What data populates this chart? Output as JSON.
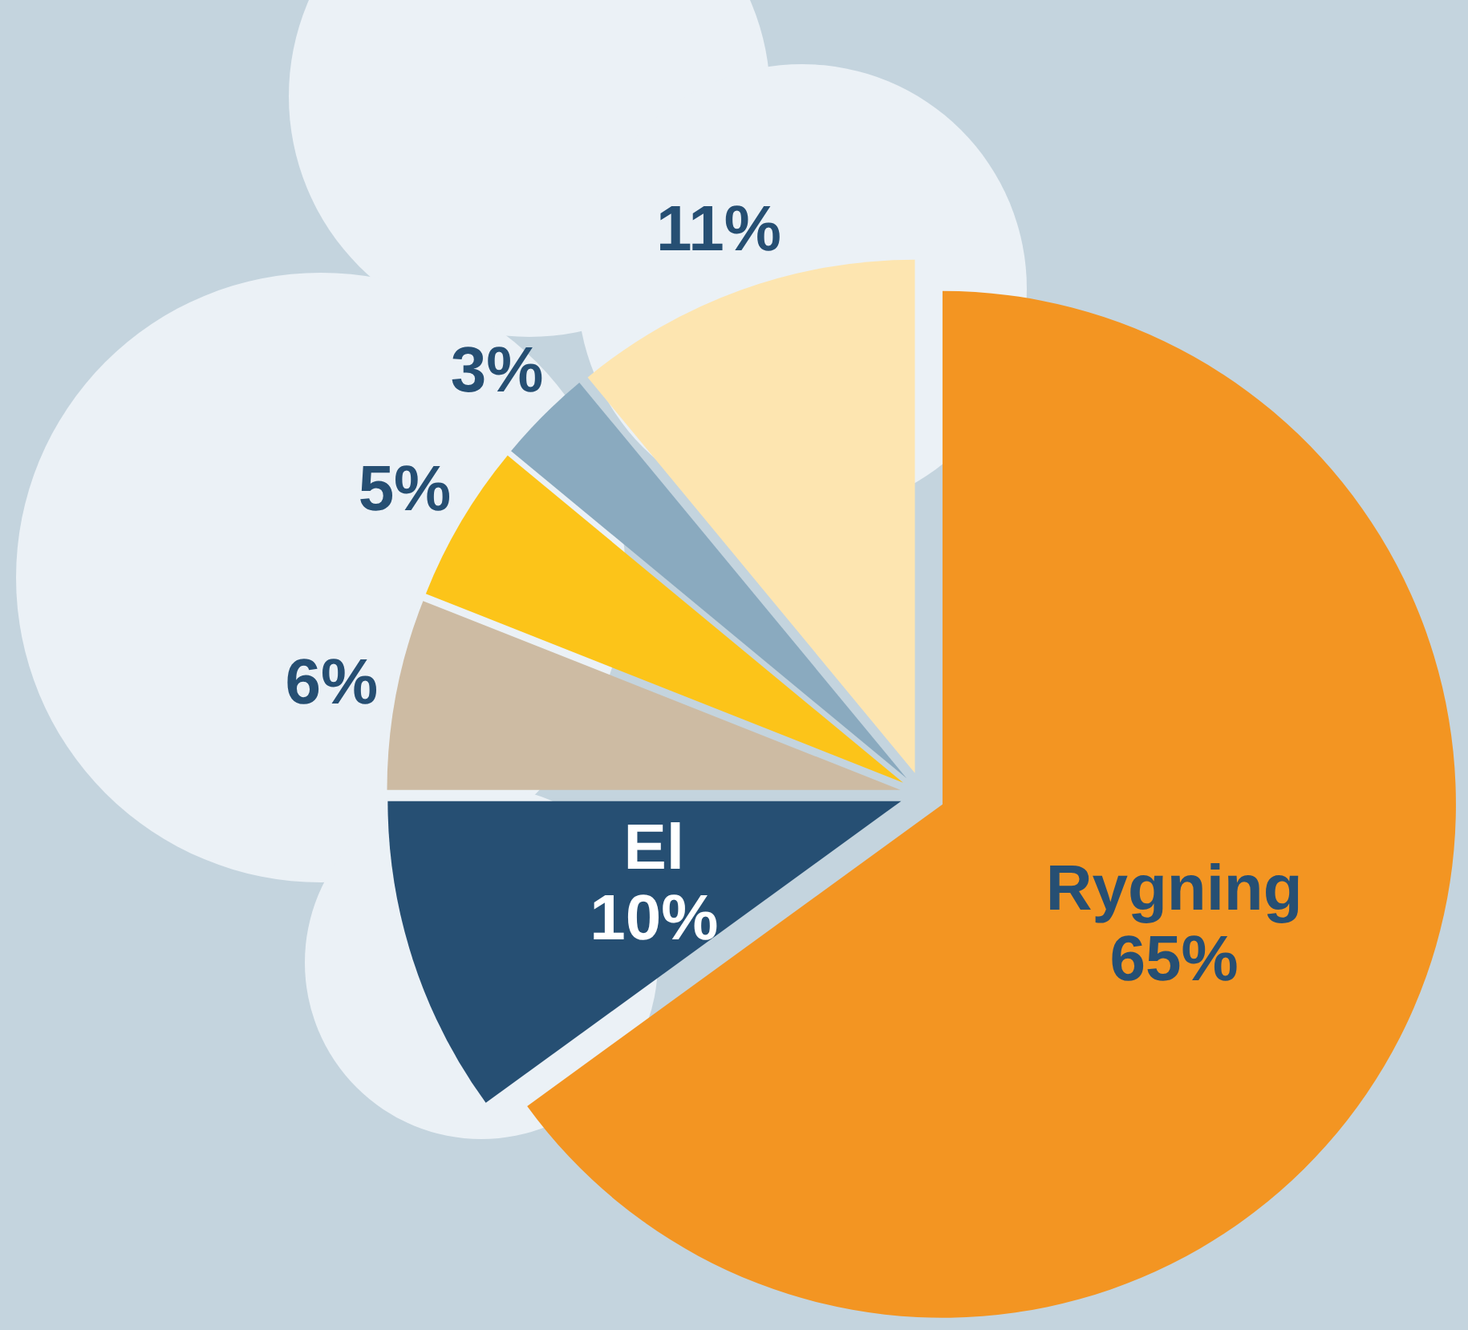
{
  "chart_data": {
    "type": "pie",
    "categories": [
      "Rygning",
      "El",
      null,
      null,
      null,
      null
    ],
    "values": [
      65,
      10,
      6,
      5,
      3,
      11
    ],
    "value_labels": [
      "65%",
      "10%",
      "6%",
      "5%",
      "3%",
      "11%"
    ],
    "colors": [
      "#f39522",
      "#264f73",
      "#cdbba3",
      "#fcc419",
      "#8aaabf",
      "#fde5b0"
    ]
  }
}
